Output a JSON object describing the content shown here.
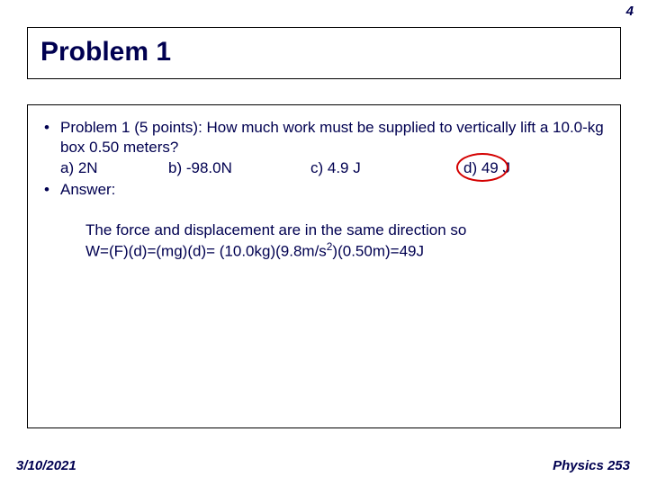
{
  "page_number": "4",
  "title": "Problem 1",
  "bullets": {
    "problem": "Problem 1 (5 points): How much work must be supplied to vertically lift a 10.0-kg box 0.50 meters?",
    "options": {
      "a": "a) 2N",
      "b": "b) -98.0N",
      "c": "c) 4.9 J",
      "d": "d) 49 J"
    },
    "answer_label": "Answer:"
  },
  "explanation_line1": "The force and displacement are in the same direction so",
  "explanation_line2_pre": "W=(F)(d)=(mg)(d)= (10.0kg)(9.8m/s",
  "explanation_line2_sup": "2",
  "explanation_line2_post": ")(0.50m)=49J",
  "footer": {
    "date": "3/10/2021",
    "course": "Physics 253"
  },
  "colors": {
    "text": "#000050",
    "circle": "#d40000",
    "border": "#000000",
    "background": "#ffffff"
  }
}
